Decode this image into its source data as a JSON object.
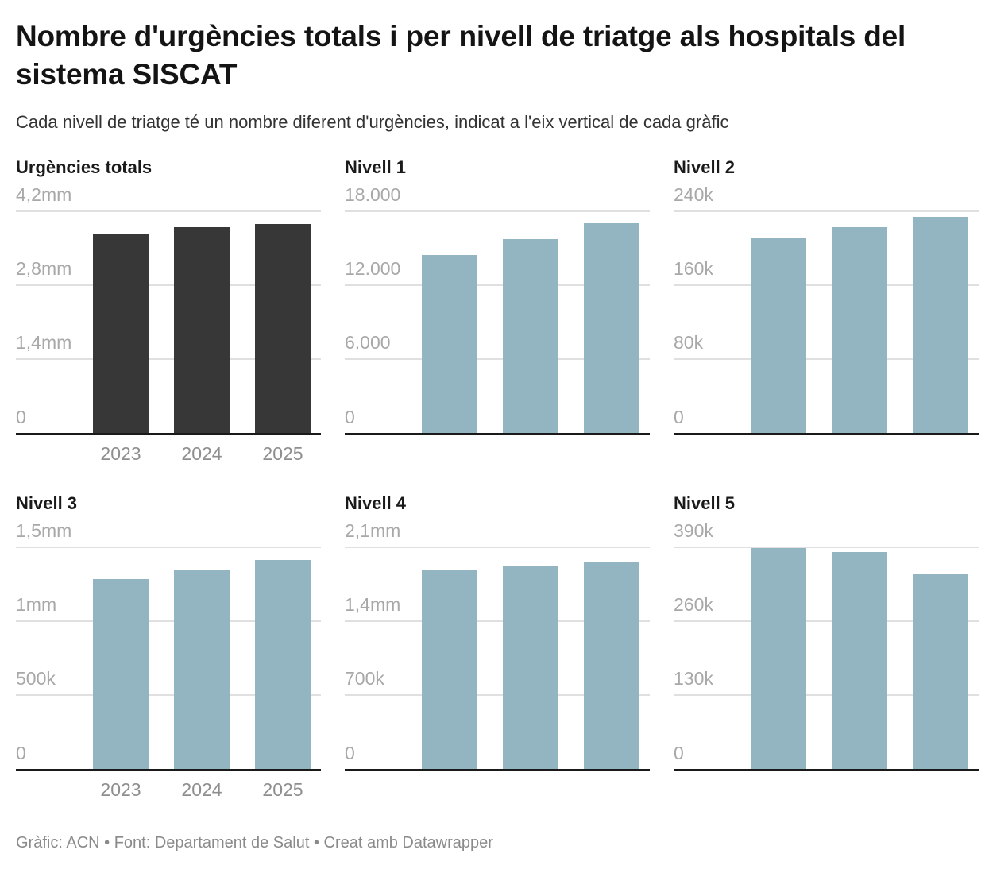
{
  "header": {
    "title": "Nombre d'urgències totals i per nivell de triatge als hospitals del sistema SISCAT",
    "subtitle": "Cada nivell de triatge té un nombre diferent d'urgències, indicat a l'eix vertical de cada gràfic"
  },
  "footer": {
    "text": "Gràfic: ACN • Font: Departament de Salut • Creat amb Datawrapper"
  },
  "colors": {
    "total_bar": "#373737",
    "level_bar": "#93b5c1",
    "gridline": "#e0e0e0",
    "axis_line": "#1a1a1a",
    "y_tick_label": "#a8a8a8",
    "x_tick_label": "#8e8e8e"
  },
  "chart_data": [
    {
      "type": "bar",
      "title": "Urgències totals",
      "categories": [
        "2023",
        "2024",
        "2025"
      ],
      "values": [
        3760000,
        3880000,
        3940000
      ],
      "ymax": 4200000,
      "yticks": [
        "4,2mm",
        "2,8mm",
        "1,4mm",
        "0"
      ],
      "ylim": [
        0,
        4200000
      ],
      "show_x_labels": true,
      "bar_color": "#373737",
      "grid": "horizontal",
      "legend": "none"
    },
    {
      "type": "bar",
      "title": "Nivell 1",
      "categories": [
        "2023",
        "2024",
        "2025"
      ],
      "values": [
        14400,
        15700,
        16950
      ],
      "ymax": 18000,
      "yticks": [
        "18.000",
        "12.000",
        "6.000",
        "0"
      ],
      "ylim": [
        0,
        18000
      ],
      "show_x_labels": false,
      "bar_color": "#93b5c1",
      "grid": "horizontal",
      "legend": "none"
    },
    {
      "type": "bar",
      "title": "Nivell 2",
      "categories": [
        "2023",
        "2024",
        "2025"
      ],
      "values": [
        211000,
        222000,
        233000
      ],
      "ymax": 240000,
      "yticks": [
        "240k",
        "160k",
        "80k",
        "0"
      ],
      "ylim": [
        0,
        240000
      ],
      "show_x_labels": false,
      "bar_color": "#93b5c1",
      "grid": "horizontal",
      "legend": "none"
    },
    {
      "type": "bar",
      "title": "Nivell 3",
      "categories": [
        "2023",
        "2024",
        "2025"
      ],
      "values": [
        1280000,
        1340000,
        1410000
      ],
      "ymax": 1500000,
      "yticks": [
        "1,5mm",
        "1mm",
        "500k",
        "0"
      ],
      "ylim": [
        0,
        1500000
      ],
      "show_x_labels": true,
      "bar_color": "#93b5c1",
      "grid": "horizontal",
      "legend": "none"
    },
    {
      "type": "bar",
      "title": "Nivell 4",
      "categories": [
        "2023",
        "2024",
        "2025"
      ],
      "values": [
        1880000,
        1910000,
        1950000
      ],
      "ymax": 2100000,
      "yticks": [
        "2,1mm",
        "1,4mm",
        "700k",
        "0"
      ],
      "ylim": [
        0,
        2100000
      ],
      "show_x_labels": false,
      "bar_color": "#93b5c1",
      "grid": "horizontal",
      "legend": "none"
    },
    {
      "type": "bar",
      "title": "Nivell 5",
      "categories": [
        "2023",
        "2024",
        "2025"
      ],
      "values": [
        387000,
        380000,
        343000
      ],
      "ymax": 390000,
      "yticks": [
        "390k",
        "260k",
        "130k",
        "0"
      ],
      "ylim": [
        0,
        390000
      ],
      "show_x_labels": false,
      "bar_color": "#93b5c1",
      "grid": "horizontal",
      "legend": "none"
    }
  ]
}
